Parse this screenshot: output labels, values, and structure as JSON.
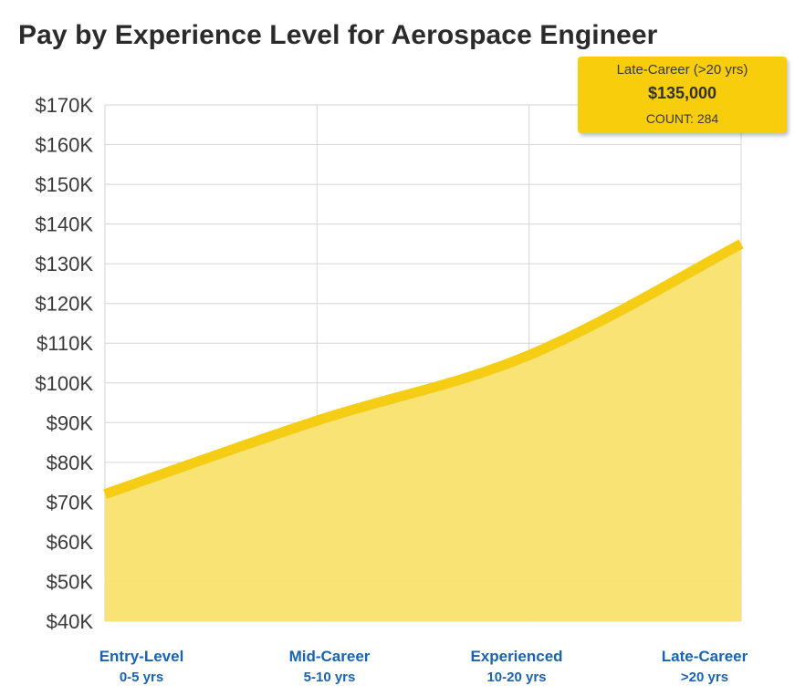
{
  "colors": {
    "line": "#f5cd14",
    "area": "#fae26e",
    "grid": "#d6d6d6",
    "axis_label": "#1a63b0",
    "tooltip_bg": "#f7cd0c"
  },
  "chart_data": {
    "type": "area",
    "title": "Pay by Experience Level for Aerospace Engineer",
    "categories": [
      "Entry-Level",
      "Mid-Career",
      "Experienced",
      "Late-Career"
    ],
    "category_sublabels": [
      "0-5 yrs",
      "5-10 yrs",
      "10-20 yrs",
      ">20 yrs"
    ],
    "values": [
      72000,
      90500,
      107000,
      135000
    ],
    "ylim": [
      40000,
      170000
    ],
    "yticks": [
      "$40K",
      "$50K",
      "$60K",
      "$70K",
      "$80K",
      "$90K",
      "$100K",
      "$110K",
      "$120K",
      "$130K",
      "$140K",
      "$150K",
      "$160K",
      "$170K"
    ],
    "ytick_values": [
      40000,
      50000,
      60000,
      70000,
      80000,
      90000,
      100000,
      110000,
      120000,
      130000,
      140000,
      150000,
      160000,
      170000
    ],
    "grid": true,
    "legend": "none"
  },
  "tooltip": {
    "label": "Late-Career (>20 yrs)",
    "value": "$135,000",
    "count": "COUNT: 284"
  }
}
